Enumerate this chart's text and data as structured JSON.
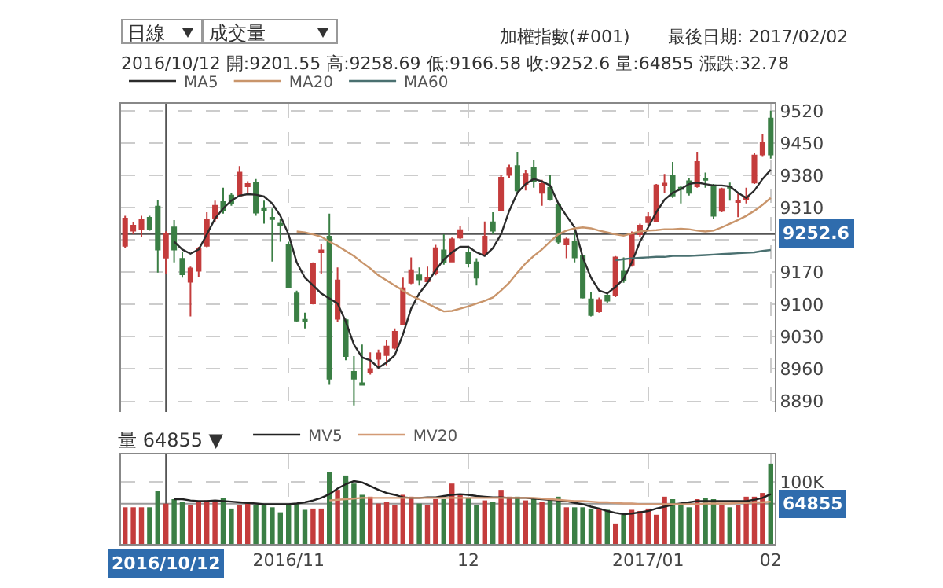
{
  "chart_data": [
    {
      "type": "candlestick",
      "annotations": [
        "日線",
        "成交量",
        "加權指數(#001)",
        "最後日期: 2017/02/02",
        "2016/10/12 開:9201.55 高:9258.69 低:9166.58 收:9252.6 量:64855 漲跌:32.78"
      ],
      "categories": [
        null,
        null,
        null,
        null,
        null,
        "2016/10/12",
        null,
        null,
        null,
        null,
        null,
        null,
        null,
        null,
        null,
        null,
        null,
        null,
        null,
        null,
        "2016/11",
        null,
        null,
        null,
        null,
        null,
        null,
        null,
        null,
        null,
        null,
        null,
        null,
        null,
        null,
        null,
        null,
        null,
        null,
        null,
        null,
        null,
        "12",
        null,
        null,
        null,
        null,
        null,
        null,
        null,
        null,
        null,
        null,
        null,
        null,
        null,
        null,
        null,
        null,
        null,
        null,
        null,
        null,
        null,
        "2017/01",
        null,
        null,
        null,
        null,
        null,
        null,
        null,
        null,
        null,
        null,
        null,
        null,
        null,
        null,
        "02"
      ],
      "ohlc": [
        [
          9227,
          9292,
          9222,
          9286
        ],
        [
          9260,
          9278,
          9252,
          9271
        ],
        [
          9263,
          9292,
          9247,
          9283
        ],
        [
          9288,
          9292,
          9260,
          9264
        ],
        [
          9312,
          9327,
          9169,
          9219
        ],
        [
          9201.55,
          9258.69,
          9166.58,
          9252.6
        ],
        [
          9267,
          9283,
          9191,
          9219
        ],
        [
          9199,
          9213,
          9158,
          9165
        ],
        [
          9149,
          9182,
          9074,
          9178
        ],
        [
          9173,
          9225,
          9160,
          9220
        ],
        [
          9227,
          9300,
          9224,
          9283
        ],
        [
          9286,
          9325,
          9280,
          9314
        ],
        [
          9322,
          9353,
          9297,
          9305
        ],
        [
          9336,
          9342,
          9314,
          9319
        ],
        [
          9336,
          9400,
          9335,
          9386
        ],
        [
          9356,
          9367,
          9342,
          9361
        ],
        [
          9364,
          9372,
          9292,
          9299
        ],
        [
          9308,
          9325,
          9275,
          9305
        ],
        [
          9288,
          9308,
          9193,
          9285
        ],
        [
          9275,
          9286,
          9236,
          9271
        ],
        [
          9230,
          9236,
          9135,
          9138
        ],
        [
          9124,
          9130,
          9063,
          9065
        ],
        [
          9067,
          9082,
          9048,
          9064
        ],
        [
          9102,
          9191,
          9100,
          9189
        ],
        [
          9213,
          9230,
          9167,
          9217
        ],
        [
          9247,
          9297,
          8926,
          8939
        ],
        [
          9069,
          9180,
          9063,
          9152
        ],
        [
          9066,
          9069,
          8979,
          8988
        ],
        [
          8954,
          8988,
          8881,
          8939
        ],
        [
          8929,
          9013,
          8924,
          8926
        ],
        [
          8954,
          8996,
          8948,
          8960
        ],
        [
          8982,
          9002,
          8959,
          8994
        ],
        [
          8990,
          9022,
          8968,
          9009
        ],
        [
          9006,
          9048,
          9002,
          9041
        ],
        [
          9057,
          9158,
          9055,
          9135
        ],
        [
          9147,
          9202,
          9144,
          9174
        ],
        [
          9163,
          9180,
          9141,
          9154
        ],
        [
          9150,
          9182,
          9147,
          9158
        ],
        [
          9167,
          9229,
          9163,
          9222
        ],
        [
          9217,
          9252,
          9186,
          9191
        ],
        [
          9193,
          9245,
          9191,
          9241
        ],
        [
          9245,
          9271,
          9242,
          9261
        ],
        [
          9213,
          9222,
          9180,
          9189
        ],
        [
          9191,
          9200,
          9141,
          9158
        ],
        [
          9208,
          9280,
          9207,
          9247
        ],
        [
          9278,
          9300,
          9252,
          9260
        ],
        [
          9305,
          9381,
          9303,
          9375
        ],
        [
          9381,
          9403,
          9375,
          9395
        ],
        [
          9400,
          9431,
          9342,
          9347
        ],
        [
          9361,
          9392,
          9347,
          9383
        ],
        [
          9397,
          9414,
          9353,
          9367
        ],
        [
          9342,
          9370,
          9314,
          9361
        ],
        [
          9353,
          9381,
          9325,
          9327
        ],
        [
          9316,
          9319,
          9230,
          9236
        ],
        [
          9230,
          9245,
          9200,
          9241
        ],
        [
          9236,
          9267,
          9191,
          9202
        ],
        [
          9205,
          9208,
          9113,
          9115
        ],
        [
          9111,
          9127,
          9074,
          9077
        ],
        [
          9085,
          9115,
          9082,
          9110
        ],
        [
          9119,
          9124,
          9102,
          9108
        ],
        [
          9119,
          9205,
          9116,
          9202
        ],
        [
          9171,
          9202,
          9147,
          9152
        ],
        [
          9186,
          9258,
          9182,
          9252
        ],
        [
          9252,
          9275,
          9247,
          9271
        ],
        [
          9278,
          9300,
          9271,
          9289
        ],
        [
          9280,
          9361,
          9278,
          9358
        ],
        [
          9358,
          9383,
          9342,
          9362
        ],
        [
          9379,
          9409,
          9331,
          9336
        ],
        [
          9353,
          9356,
          9319,
          9350
        ],
        [
          9367,
          9375,
          9336,
          9342
        ],
        [
          9356,
          9431,
          9353,
          9409
        ],
        [
          9372,
          9386,
          9353,
          9370
        ],
        [
          9358,
          9361,
          9286,
          9292
        ],
        [
          9303,
          9353,
          9300,
          9350
        ],
        [
          9356,
          9364,
          9325,
          9353
        ],
        [
          9322,
          9342,
          9289,
          9325
        ],
        [
          9328,
          9353,
          9319,
          9333
        ],
        [
          9364,
          9428,
          9361,
          9423
        ],
        [
          9425,
          9470,
          9420,
          9450
        ],
        [
          9503,
          9520,
          9416,
          9425
        ]
      ],
      "colors": [
        "#c43c3c",
        "#c43c3c",
        "#c43c3c",
        "#3b7f45",
        "#3b7f45",
        "#c43c3c",
        "#3b7f45",
        "#3b7f45",
        "#c43c3c",
        "#c43c3c",
        "#c43c3c",
        "#c43c3c",
        "#3b7f45",
        "#3b7f45",
        "#c43c3c",
        "#c43c3c",
        "#3b7f45",
        "#3b7f45",
        "#3b7f45",
        "#3b7f45",
        "#3b7f45",
        "#3b7f45",
        "#3b7f45",
        "#c43c3c",
        "#c43c3c",
        "#3b7f45",
        "#c43c3c",
        "#3b7f45",
        "#3b7f45",
        "#3b7f45",
        "#c43c3c",
        "#c43c3c",
        "#c43c3c",
        "#c43c3c",
        "#c43c3c",
        "#c43c3c",
        "#3b7f45",
        "#c43c3c",
        "#c43c3c",
        "#3b7f45",
        "#c43c3c",
        "#c43c3c",
        "#3b7f45",
        "#3b7f45",
        "#c43c3c",
        "#3b7f45",
        "#c43c3c",
        "#c43c3c",
        "#3b7f45",
        "#c43c3c",
        "#3b7f45",
        "#c43c3c",
        "#3b7f45",
        "#3b7f45",
        "#c43c3c",
        "#3b7f45",
        "#3b7f45",
        "#3b7f45",
        "#c43c3c",
        "#3b7f45",
        "#c43c3c",
        "#3b7f45",
        "#c43c3c",
        "#c43c3c",
        "#c43c3c",
        "#c43c3c",
        "#c43c3c",
        "#3b7f45",
        "#3b7f45",
        "#3b7f45",
        "#c43c3c",
        "#3b7f45",
        "#3b7f45",
        "#c43c3c",
        "#3b7f45",
        "#c43c3c",
        "#c43c3c",
        "#c43c3c",
        "#c43c3c",
        "#3b7f45"
      ],
      "series": [
        {
          "type": "line",
          "name": "MA5",
          "color": "#2b2b2b",
          "values": [
            null,
            null,
            null,
            null,
            null,
            null,
            9236,
            9219,
            9210,
            9219,
            9252,
            9286,
            9308,
            9325,
            9336,
            9339,
            9338,
            9334,
            9319,
            9292,
            9252,
            9191,
            9158,
            9141,
            9124,
            9113,
            9102,
            9063,
            9013,
            8985,
            8979,
            8963,
            8974,
            8990,
            9035,
            9091,
            9124,
            9147,
            9174,
            9197,
            9213,
            9225,
            9225,
            9213,
            9205,
            9222,
            9252,
            9303,
            9342,
            9361,
            9372,
            9367,
            9358,
            9319,
            9292,
            9267,
            9202,
            9158,
            9130,
            9124,
            9138,
            9155,
            9191,
            9236,
            9267,
            9300,
            9327,
            9342,
            9350,
            9361,
            9364,
            9361,
            9358,
            9358,
            9356,
            9342,
            9331,
            9347,
            9372,
            9392
          ]
        },
        {
          "type": "line",
          "name": "MA20",
          "color": "#c9956b",
          "values": [
            null,
            null,
            null,
            null,
            null,
            null,
            null,
            null,
            null,
            null,
            null,
            null,
            null,
            null,
            null,
            null,
            null,
            null,
            null,
            null,
            null,
            9258,
            9256,
            9252,
            9247,
            9236,
            9227,
            9216,
            9205,
            9191,
            9178,
            9163,
            9152,
            9141,
            9130,
            9119,
            9111,
            9102,
            9093,
            9085,
            9086,
            9091,
            9096,
            9102,
            9108,
            9115,
            9130,
            9147,
            9169,
            9189,
            9205,
            9219,
            9236,
            9252,
            9260,
            9265,
            9267,
            9265,
            9260,
            9256,
            9252,
            9249,
            9254,
            9258,
            9260,
            9261,
            9263,
            9263,
            9264,
            9263,
            9260,
            9258,
            9260,
            9267,
            9275,
            9283,
            9292,
            9303,
            9316,
            9331
          ]
        },
        {
          "type": "line",
          "name": "MA60",
          "color": "#4a7070",
          "values": [
            null,
            null,
            null,
            null,
            null,
            null,
            null,
            null,
            null,
            null,
            null,
            null,
            null,
            null,
            null,
            null,
            null,
            null,
            null,
            null,
            null,
            null,
            null,
            null,
            null,
            null,
            null,
            null,
            null,
            null,
            null,
            null,
            null,
            null,
            null,
            null,
            null,
            null,
            null,
            null,
            null,
            null,
            null,
            null,
            null,
            null,
            null,
            null,
            null,
            null,
            null,
            null,
            null,
            null,
            null,
            null,
            null,
            null,
            null,
            null,
            9196,
            9198,
            9200,
            9201,
            9202,
            9203,
            9203,
            9205,
            9205,
            9205,
            9206,
            9207,
            9208,
            9209,
            9210,
            9211,
            9212,
            9213,
            9216,
            9218
          ]
        }
      ],
      "ylim": [
        8867,
        9535
      ],
      "yticks": [
        8890,
        8960,
        9030,
        9100,
        9170,
        {
          "value": 9240,
          "label": null
        },
        9310,
        9380,
        9450,
        9520
      ],
      "grid": true,
      "legend": "top left",
      "tick_labels": "y",
      "ref_lines": [
        {
          "axis": "y",
          "value": 9252.6,
          "label": "9252.6",
          "color": "#555555"
        },
        {
          "axis": "x",
          "value": "2016/10/12",
          "color": "#555555"
        }
      ]
    },
    {
      "type": "bar",
      "annotations": [
        "量 64855 ▼"
      ],
      "categories": [
        null,
        null,
        null,
        null,
        null,
        "2016/10/12",
        null,
        null,
        null,
        null,
        null,
        null,
        null,
        null,
        null,
        null,
        null,
        null,
        null,
        null,
        "2016/11",
        null,
        null,
        null,
        null,
        null,
        null,
        null,
        null,
        null,
        null,
        null,
        null,
        null,
        null,
        null,
        null,
        null,
        null,
        null,
        null,
        null,
        "12",
        null,
        null,
        null,
        null,
        null,
        null,
        null,
        null,
        null,
        null,
        null,
        null,
        null,
        null,
        null,
        null,
        null,
        null,
        null,
        null,
        null,
        "2017/01",
        null,
        null,
        null,
        null,
        null,
        null,
        null,
        null,
        null,
        null,
        null,
        null,
        null,
        null,
        "02"
      ],
      "values": [
        59000,
        59000,
        59000,
        59000,
        85000,
        64855,
        72000,
        68000,
        62000,
        68000,
        70000,
        68000,
        74000,
        57000,
        63000,
        65000,
        63000,
        63000,
        59000,
        51000,
        63000,
        65000,
        55000,
        57000,
        57000,
        116000,
        87000,
        110000,
        97000,
        79000,
        76000,
        65000,
        68000,
        63000,
        79000,
        76000,
        65000,
        63000,
        72000,
        72000,
        97000,
        80000,
        74000,
        62000,
        70000,
        68000,
        87000,
        76000,
        76000,
        70000,
        74000,
        68000,
        74000,
        76000,
        59000,
        59000,
        59000,
        57000,
        57000,
        55000,
        33000,
        47000,
        55000,
        53000,
        57000,
        47000,
        76000,
        72000,
        63000,
        59000,
        72000,
        74000,
        72000,
        63000,
        59000,
        63000,
        76000,
        76000,
        82000,
        129000
      ],
      "colors": [
        "#c43c3c",
        "#c43c3c",
        "#c43c3c",
        "#3b7f45",
        "#3b7f45",
        "#c43c3c",
        "#3b7f45",
        "#3b7f45",
        "#c43c3c",
        "#c43c3c",
        "#c43c3c",
        "#c43c3c",
        "#3b7f45",
        "#3b7f45",
        "#c43c3c",
        "#c43c3c",
        "#3b7f45",
        "#3b7f45",
        "#3b7f45",
        "#3b7f45",
        "#3b7f45",
        "#3b7f45",
        "#3b7f45",
        "#c43c3c",
        "#c43c3c",
        "#3b7f45",
        "#c43c3c",
        "#3b7f45",
        "#3b7f45",
        "#3b7f45",
        "#c43c3c",
        "#c43c3c",
        "#c43c3c",
        "#c43c3c",
        "#c43c3c",
        "#c43c3c",
        "#3b7f45",
        "#c43c3c",
        "#c43c3c",
        "#3b7f45",
        "#c43c3c",
        "#c43c3c",
        "#3b7f45",
        "#3b7f45",
        "#c43c3c",
        "#3b7f45",
        "#c43c3c",
        "#c43c3c",
        "#3b7f45",
        "#c43c3c",
        "#3b7f45",
        "#c43c3c",
        "#3b7f45",
        "#3b7f45",
        "#c43c3c",
        "#3b7f45",
        "#3b7f45",
        "#3b7f45",
        "#c43c3c",
        "#3b7f45",
        "#c43c3c",
        "#3b7f45",
        "#c43c3c",
        "#c43c3c",
        "#c43c3c",
        "#c43c3c",
        "#c43c3c",
        "#3b7f45",
        "#3b7f45",
        "#3b7f45",
        "#c43c3c",
        "#3b7f45",
        "#3b7f45",
        "#c43c3c",
        "#3b7f45",
        "#c43c3c",
        "#c43c3c",
        "#c43c3c",
        "#c43c3c",
        "#3b7f45"
      ],
      "series": [
        {
          "type": "line",
          "name": "MV5",
          "color": "#222222",
          "values": [
            null,
            null,
            null,
            null,
            null,
            null,
            72000,
            72000,
            70000,
            69000,
            69000,
            70000,
            69000,
            68000,
            67000,
            66000,
            65000,
            64000,
            64000,
            64000,
            64000,
            65000,
            67000,
            70000,
            74000,
            80000,
            89000,
            96000,
            101000,
            99000,
            93000,
            87000,
            82000,
            79000,
            75000,
            74000,
            74000,
            75000,
            75000,
            77000,
            79000,
            80000,
            79000,
            77000,
            76000,
            75000,
            75000,
            74000,
            74000,
            74000,
            73000,
            72000,
            71000,
            70000,
            69000,
            66000,
            64000,
            60000,
            57000,
            53000,
            50000,
            48000,
            49000,
            51000,
            53000,
            57000,
            60000,
            63000,
            65000,
            67000,
            69000,
            69000,
            69000,
            69000,
            69000,
            69000,
            69000,
            71000,
            74000,
            80000
          ]
        },
        {
          "type": "line",
          "name": "MV20",
          "color": "#d39a75",
          "values": [
            null,
            null,
            null,
            null,
            null,
            null,
            null,
            null,
            null,
            null,
            null,
            null,
            null,
            null,
            null,
            null,
            null,
            null,
            null,
            null,
            null,
            null,
            null,
            null,
            null,
            70000,
            71000,
            72000,
            73000,
            74000,
            74000,
            74000,
            74000,
            74000,
            74000,
            74000,
            74000,
            74000,
            74000,
            74000,
            74000,
            74000,
            74000,
            74000,
            74000,
            74000,
            74000,
            74000,
            74000,
            74000,
            74000,
            73000,
            72000,
            71000,
            70000,
            69000,
            69000,
            68000,
            67000,
            67000,
            66000,
            65000,
            65000,
            64000,
            64000,
            64000,
            64000,
            64000,
            64000,
            64000,
            64000,
            65000,
            65000,
            65000,
            65000,
            66000,
            66000,
            67000,
            67000,
            68000
          ]
        }
      ],
      "ylim": [
        0,
        144000
      ],
      "yticks": [
        {
          "value": 100000,
          "label": "100K"
        }
      ],
      "grid": true,
      "legend": "top left",
      "ref_lines": [
        {
          "axis": "y",
          "value": 64855,
          "label": "64855",
          "color": "#999999"
        },
        {
          "axis": "x",
          "value": "2016/10/12",
          "label": "2016/10/12",
          "color": "#555555"
        }
      ]
    }
  ]
}
